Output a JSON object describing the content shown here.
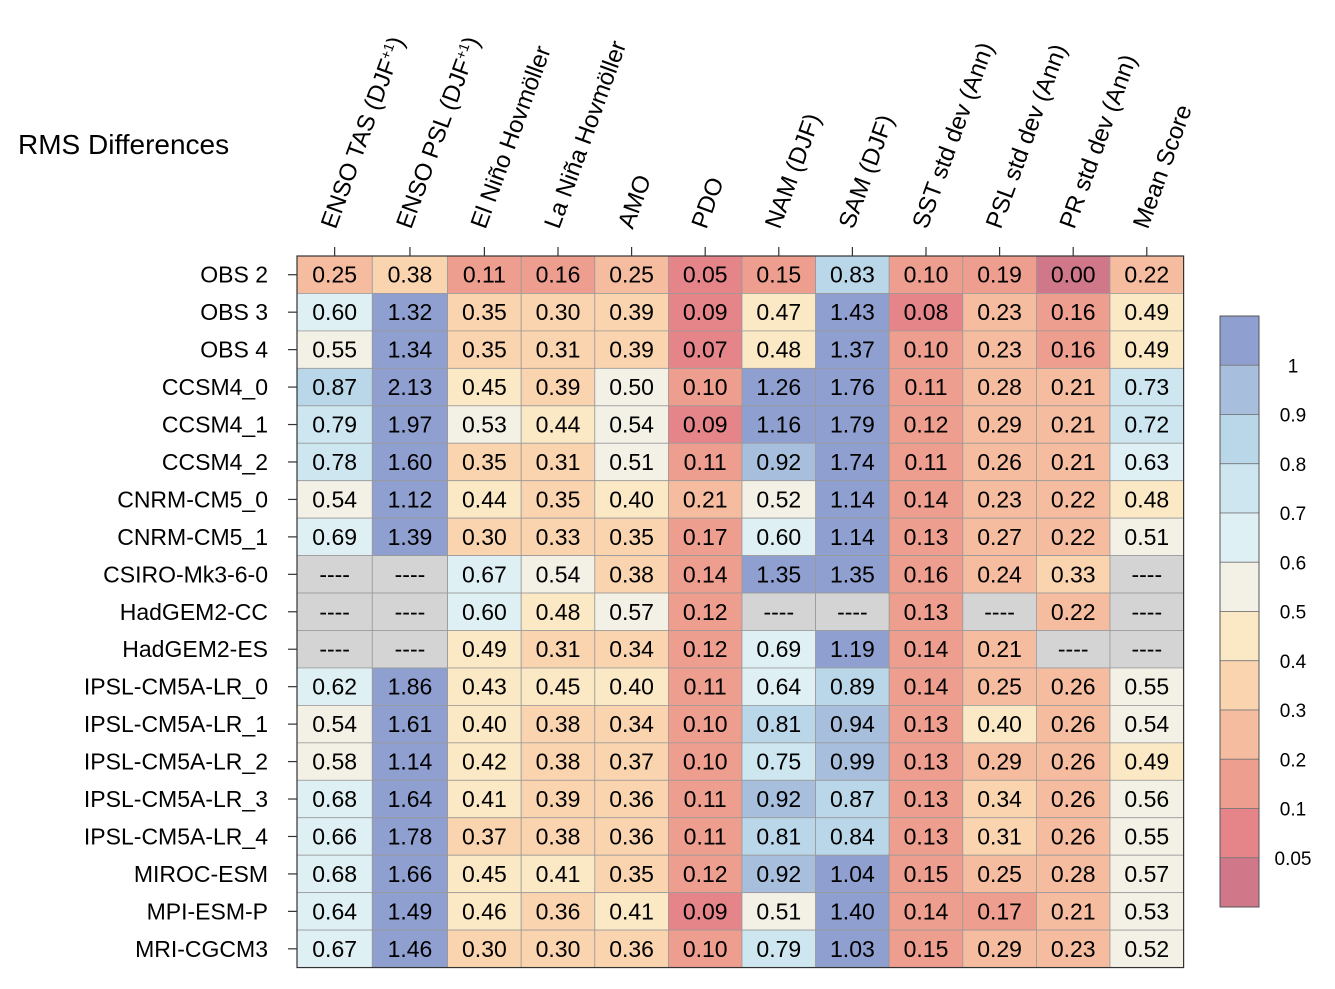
{
  "chart_data": {
    "type": "heatmap",
    "title": "RMS Differences",
    "columns": [
      {
        "label": "ENSO TAS (DJF",
        "sup": "+1",
        "close": ")"
      },
      {
        "label": "ENSO PSL (DJF",
        "sup": "+1",
        "close": ")"
      },
      {
        "label": "El Niño Hovmöller"
      },
      {
        "label": "La Niña Hovmöller"
      },
      {
        "label": "AMO"
      },
      {
        "label": "PDO"
      },
      {
        "label": "NAM (DJF)"
      },
      {
        "label": "SAM (DJF)"
      },
      {
        "label": "SST std dev (Ann)"
      },
      {
        "label": "PSL std dev (Ann)"
      },
      {
        "label": "PR std dev (Ann)"
      },
      {
        "label": "Mean Score"
      }
    ],
    "rows": [
      "OBS 2",
      "OBS 3",
      "OBS 4",
      "CCSM4_0",
      "CCSM4_1",
      "CCSM4_2",
      "CNRM-CM5_0",
      "CNRM-CM5_1",
      "CSIRO-Mk3-6-0",
      "HadGEM2-CC",
      "HadGEM2-ES",
      "IPSL-CM5A-LR_0",
      "IPSL-CM5A-LR_1",
      "IPSL-CM5A-LR_2",
      "IPSL-CM5A-LR_3",
      "IPSL-CM5A-LR_4",
      "MIROC-ESM",
      "MPI-ESM-P",
      "MRI-CGCM3"
    ],
    "values": [
      [
        0.25,
        0.38,
        0.11,
        0.16,
        0.25,
        0.05,
        0.15,
        0.83,
        0.1,
        0.19,
        0.0,
        0.22
      ],
      [
        0.6,
        1.32,
        0.35,
        0.3,
        0.39,
        0.09,
        0.47,
        1.43,
        0.08,
        0.23,
        0.16,
        0.49
      ],
      [
        0.55,
        1.34,
        0.35,
        0.31,
        0.39,
        0.07,
        0.48,
        1.37,
        0.1,
        0.23,
        0.16,
        0.49
      ],
      [
        0.87,
        2.13,
        0.45,
        0.39,
        0.5,
        0.1,
        1.26,
        1.76,
        0.11,
        0.28,
        0.21,
        0.73
      ],
      [
        0.79,
        1.97,
        0.53,
        0.44,
        0.54,
        0.09,
        1.16,
        1.79,
        0.12,
        0.29,
        0.21,
        0.72
      ],
      [
        0.78,
        1.6,
        0.35,
        0.31,
        0.51,
        0.11,
        0.92,
        1.74,
        0.11,
        0.26,
        0.21,
        0.63
      ],
      [
        0.54,
        1.12,
        0.44,
        0.35,
        0.4,
        0.21,
        0.52,
        1.14,
        0.14,
        0.23,
        0.22,
        0.48
      ],
      [
        0.69,
        1.39,
        0.3,
        0.33,
        0.35,
        0.17,
        0.6,
        1.14,
        0.13,
        0.27,
        0.22,
        0.51
      ],
      [
        null,
        null,
        0.67,
        0.54,
        0.38,
        0.14,
        1.35,
        1.35,
        0.16,
        0.24,
        0.33,
        null
      ],
      [
        null,
        null,
        0.6,
        0.48,
        0.57,
        0.12,
        null,
        null,
        0.13,
        null,
        0.22,
        null
      ],
      [
        null,
        null,
        0.49,
        0.31,
        0.34,
        0.12,
        0.69,
        1.19,
        0.14,
        0.21,
        null,
        null
      ],
      [
        0.62,
        1.86,
        0.43,
        0.45,
        0.4,
        0.11,
        0.64,
        0.89,
        0.14,
        0.25,
        0.26,
        0.55
      ],
      [
        0.54,
        1.61,
        0.4,
        0.38,
        0.34,
        0.1,
        0.81,
        0.94,
        0.13,
        0.4,
        0.26,
        0.54
      ],
      [
        0.58,
        1.14,
        0.42,
        0.38,
        0.37,
        0.1,
        0.75,
        0.99,
        0.13,
        0.29,
        0.26,
        0.49
      ],
      [
        0.68,
        1.64,
        0.41,
        0.39,
        0.36,
        0.11,
        0.92,
        0.87,
        0.13,
        0.34,
        0.26,
        0.56
      ],
      [
        0.66,
        1.78,
        0.37,
        0.38,
        0.36,
        0.11,
        0.81,
        0.84,
        0.13,
        0.31,
        0.26,
        0.55
      ],
      [
        0.68,
        1.66,
        0.45,
        0.41,
        0.35,
        0.12,
        0.92,
        1.04,
        0.15,
        0.25,
        0.28,
        0.57
      ],
      [
        0.64,
        1.49,
        0.46,
        0.36,
        0.41,
        0.09,
        0.51,
        1.4,
        0.14,
        0.17,
        0.21,
        0.53
      ],
      [
        0.67,
        1.46,
        0.3,
        0.3,
        0.36,
        0.1,
        0.79,
        1.03,
        0.15,
        0.29,
        0.23,
        0.52
      ]
    ],
    "missing_label": "----",
    "missing_color": "#d4d4d4",
    "colorbar": {
      "bins": [
        {
          "lo": 0.0,
          "hi": 0.05,
          "color": "#d0788a"
        },
        {
          "lo": 0.05,
          "hi": 0.1,
          "color": "#e5858a"
        },
        {
          "lo": 0.1,
          "hi": 0.2,
          "color": "#ee9e8e"
        },
        {
          "lo": 0.2,
          "hi": 0.3,
          "color": "#f6bc9f"
        },
        {
          "lo": 0.3,
          "hi": 0.4,
          "color": "#fad4af"
        },
        {
          "lo": 0.4,
          "hi": 0.5,
          "color": "#fbe8c5"
        },
        {
          "lo": 0.5,
          "hi": 0.6,
          "color": "#f3f1e6"
        },
        {
          "lo": 0.6,
          "hi": 0.7,
          "color": "#dff0f4"
        },
        {
          "lo": 0.7,
          "hi": 0.8,
          "color": "#cde6f0"
        },
        {
          "lo": 0.8,
          "hi": 0.9,
          "color": "#bad7ea"
        },
        {
          "lo": 0.9,
          "hi": 1.0,
          "color": "#a7bfdd"
        },
        {
          "lo": 1.0,
          "hi": 99,
          "color": "#8f9fcf"
        }
      ],
      "tick_labels": [
        "1",
        "0.9",
        "0.8",
        "0.7",
        "0.6",
        "0.5",
        "0.4",
        "0.3",
        "0.2",
        "0.1",
        "0.05"
      ]
    }
  }
}
